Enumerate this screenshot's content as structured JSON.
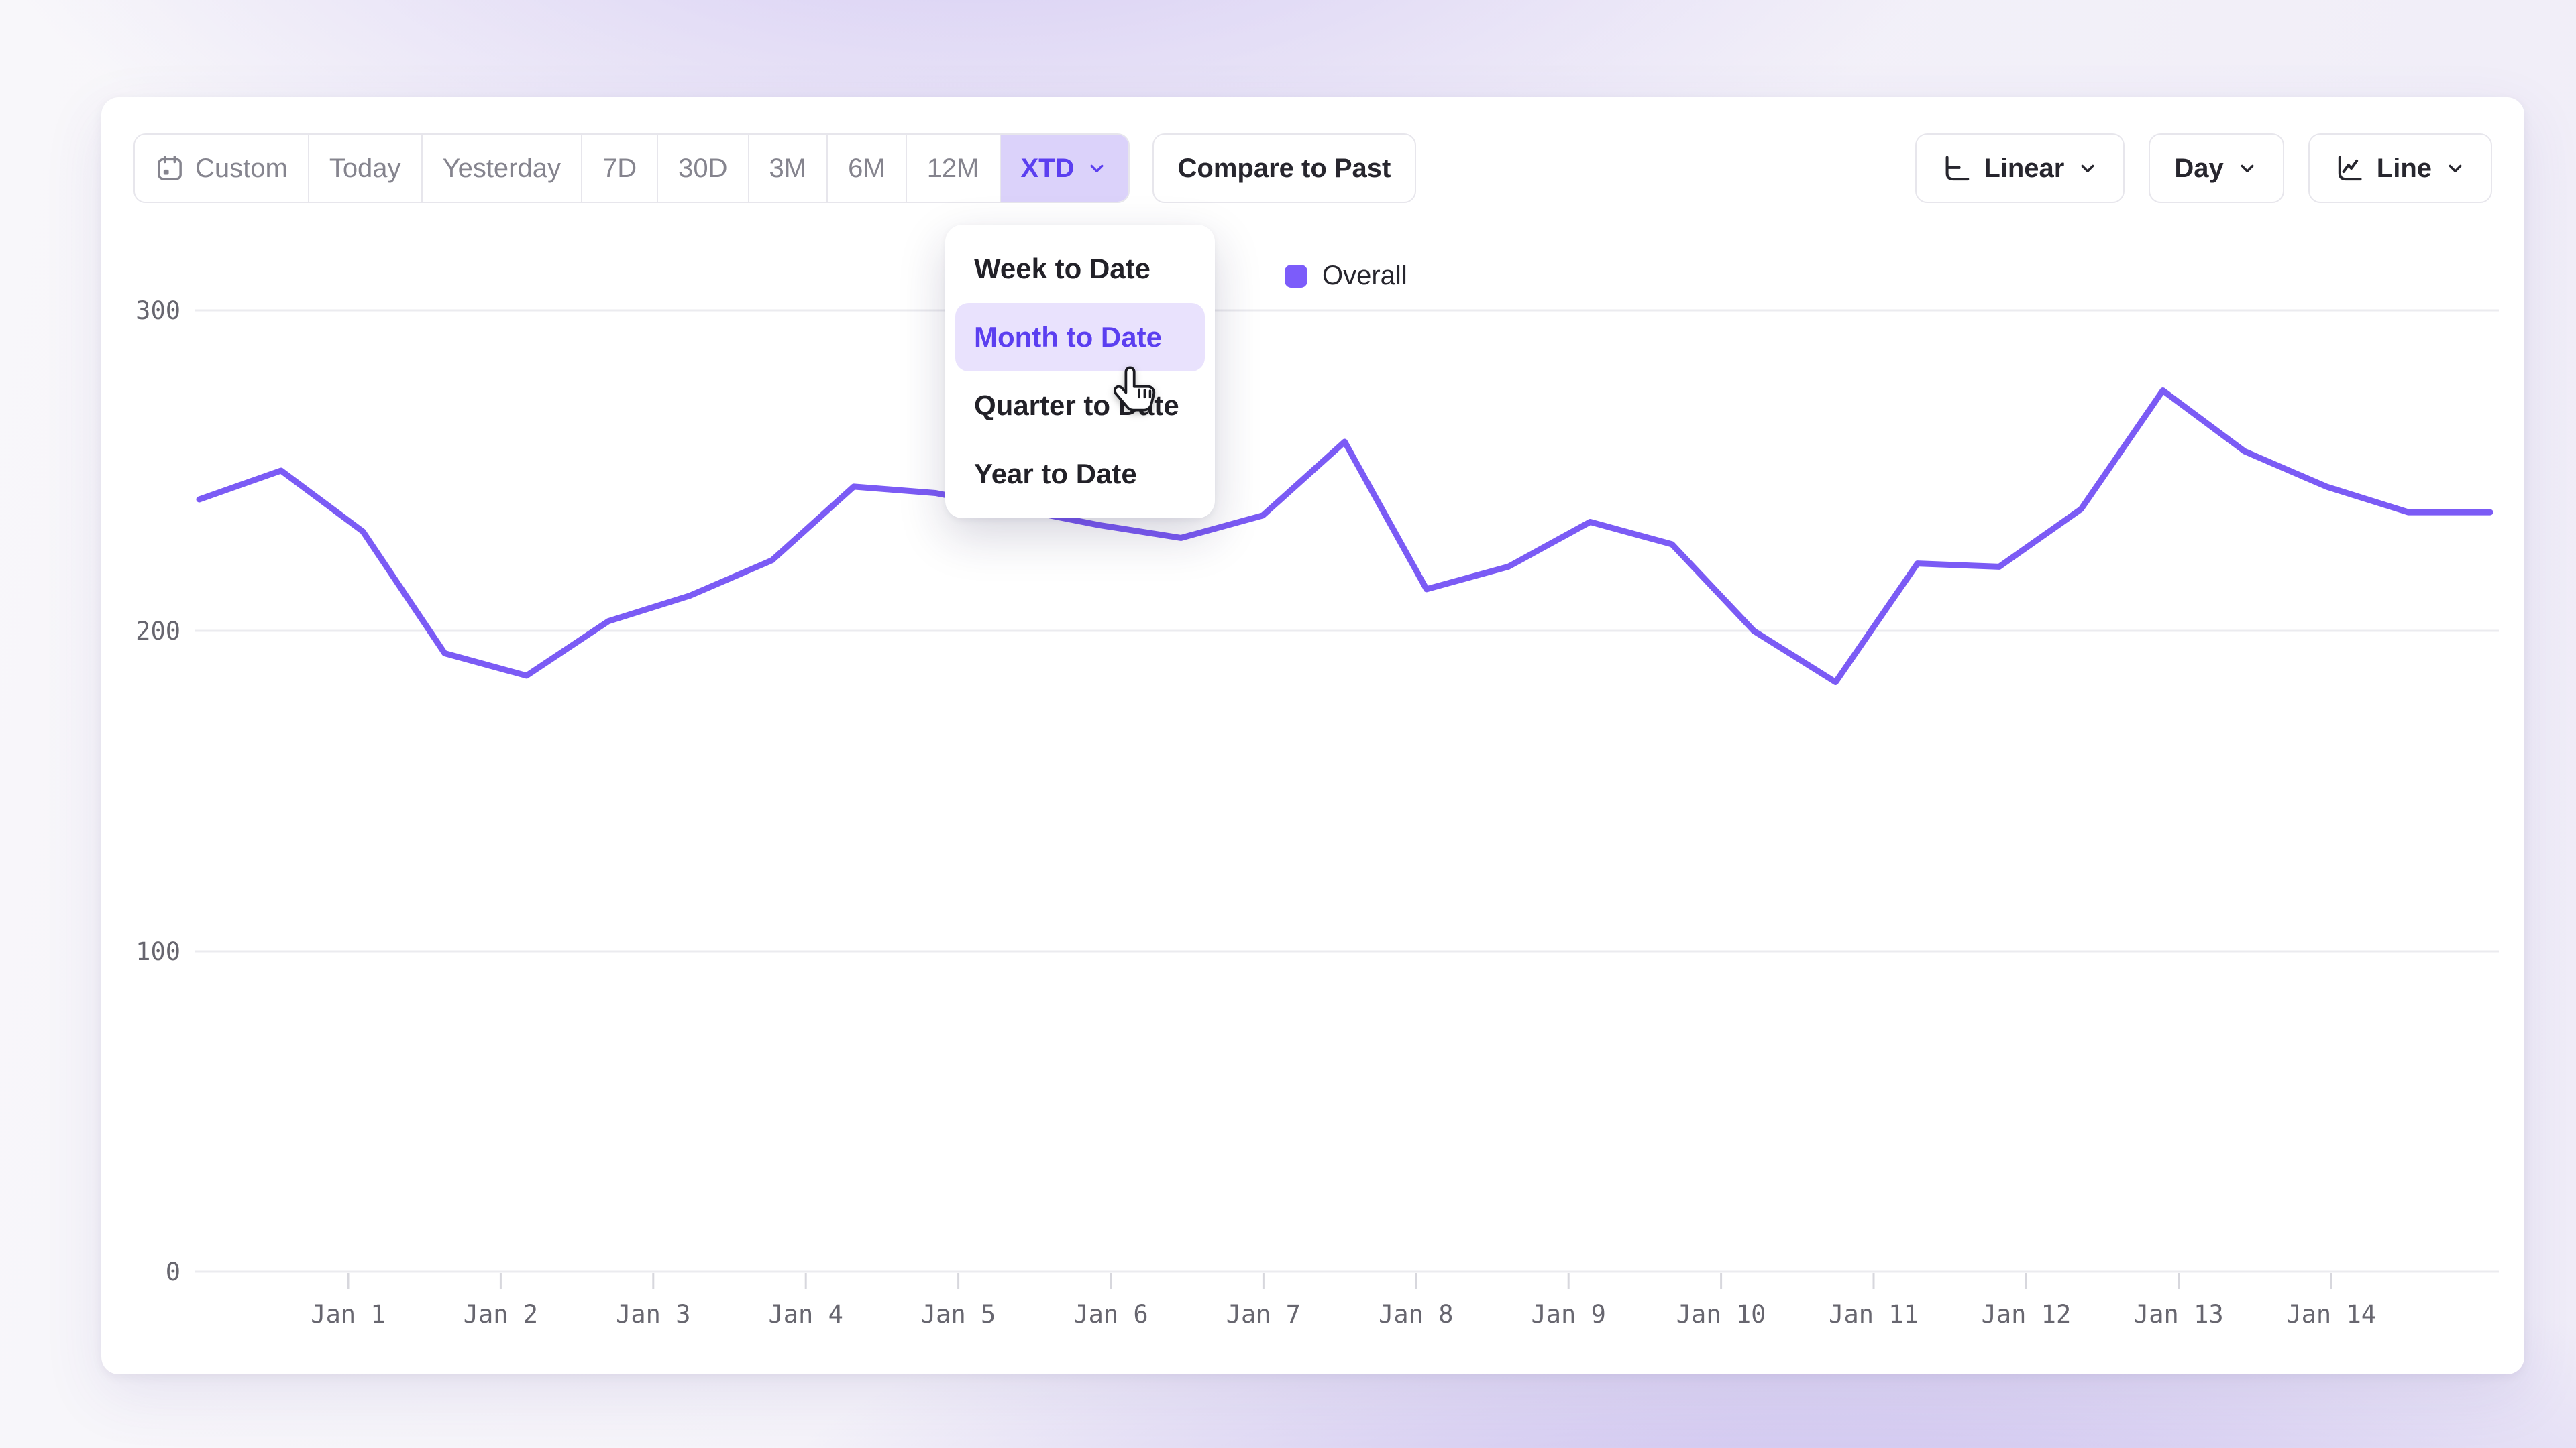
{
  "toolbar": {
    "segments": [
      {
        "label": "Custom",
        "icon": "calendar-icon"
      },
      {
        "label": "Today"
      },
      {
        "label": "Yesterday"
      },
      {
        "label": "7D"
      },
      {
        "label": "30D"
      },
      {
        "label": "3M"
      },
      {
        "label": "6M"
      },
      {
        "label": "12M"
      },
      {
        "label": "XTD",
        "selected": true,
        "icon": "chevron-down-icon"
      }
    ],
    "compare_button_label": "Compare to Past",
    "scale_dropdown": {
      "label": "Linear",
      "icon": "axis-linear-icon",
      "chevron": "chevron-down-icon"
    },
    "granularity_dropdown": {
      "label": "Day",
      "chevron": "chevron-down-icon"
    },
    "chart_type_dropdown": {
      "label": "Line",
      "icon": "line-chart-icon",
      "chevron": "chevron-down-icon"
    }
  },
  "menu": {
    "items": [
      {
        "label": "Week to Date"
      },
      {
        "label": "Month to Date",
        "highlighted": true
      },
      {
        "label": "Quarter to Date"
      },
      {
        "label": "Year to Date"
      }
    ],
    "cursor": "pointer-hand-cursor"
  },
  "chart_data": {
    "type": "line",
    "title": "",
    "xlabel": "",
    "ylabel": "",
    "x_tick_labels": [
      "Jan 1",
      "Jan 2",
      "Jan 3",
      "Jan 4",
      "Jan 5",
      "Jan 6",
      "Jan 7",
      "Jan 8",
      "Jan 9",
      "Jan 10",
      "Jan 11",
      "Jan 12",
      "Jan 13",
      "Jan 14"
    ],
    "y_ticks": [
      0,
      100,
      200,
      300
    ],
    "ylim": [
      0,
      300
    ],
    "grid": "horizontal",
    "legend_position": "top-center",
    "points_per_day": 2,
    "series": [
      {
        "name": "Overall",
        "color": "#7b5bf5",
        "values": [
          241,
          250,
          231,
          193,
          186,
          203,
          211,
          222,
          245,
          243,
          238,
          233,
          229,
          236,
          259,
          213,
          220,
          234,
          227,
          200,
          184,
          221,
          220,
          238,
          275,
          256,
          245,
          237,
          237
        ]
      }
    ]
  },
  "colors": {
    "accent": "#5b3ff0",
    "accent_segment_bg": "#dbd2fa",
    "menu_highlight_bg": "#e9e2fd",
    "line": "#7b5bf5",
    "legend_swatch": "#7c5cfa",
    "gridline": "#ebebef",
    "tick": "#d7d7dd",
    "axis_text": "#67666f",
    "muted_text": "#85848e",
    "dark_text": "#27262e",
    "border": "#e7e6ec",
    "card_bg": "#ffffff"
  }
}
